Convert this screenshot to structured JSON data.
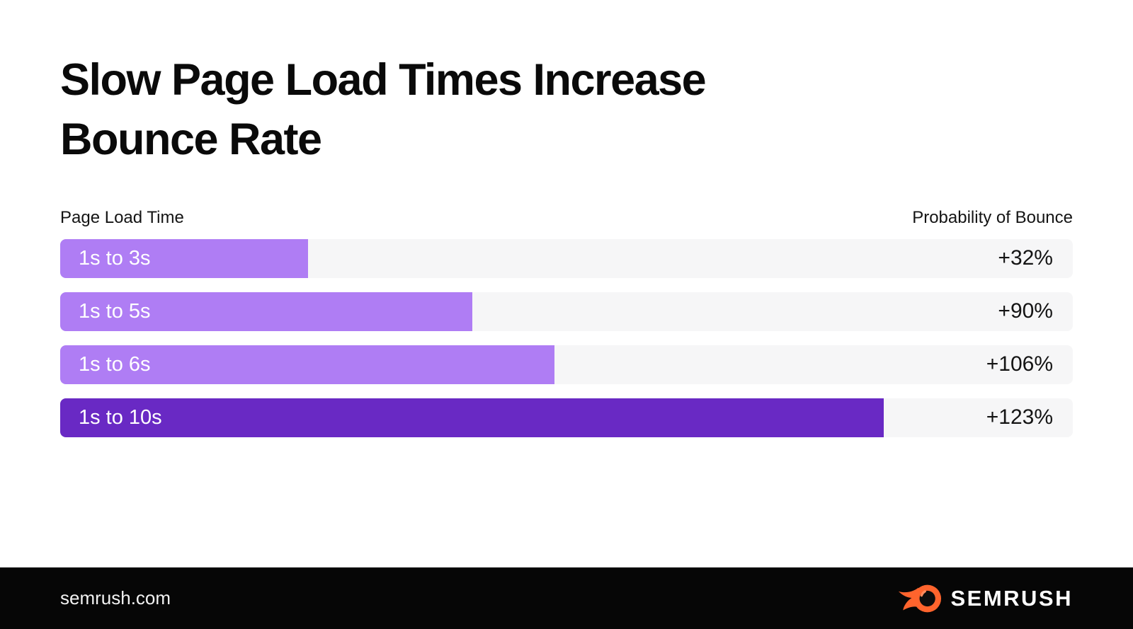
{
  "title_lines": [
    "Slow Page Load Times Increase",
    "Bounce Rate"
  ],
  "chart_data": {
    "type": "bar",
    "orientation": "horizontal",
    "title": "Slow Page Load Times Increase Bounce Rate",
    "category_header": "Page Load Time",
    "value_header": "Probability of Bounce",
    "categories": [
      "1s to 3s",
      "1s to 5s",
      "1s to 6s",
      "1s to 10s"
    ],
    "values": [
      32,
      90,
      106,
      123
    ],
    "value_labels": [
      "+32%",
      "+90%",
      "+106%",
      "+123%"
    ],
    "bar_width_pct": [
      24.5,
      40.7,
      48.8,
      81.3
    ],
    "bar_colors": [
      "#AF7DF4",
      "#AF7DF4",
      "#AF7DF4",
      "#6929C4"
    ],
    "track_color": "#F6F6F7",
    "grid": false,
    "legend": "none"
  },
  "footer": {
    "website": "semrush.com",
    "brand": "SEMRUSH",
    "flame_icon": "semrush-flame-icon",
    "background": "#060606",
    "accent_color": "#FF642D"
  }
}
